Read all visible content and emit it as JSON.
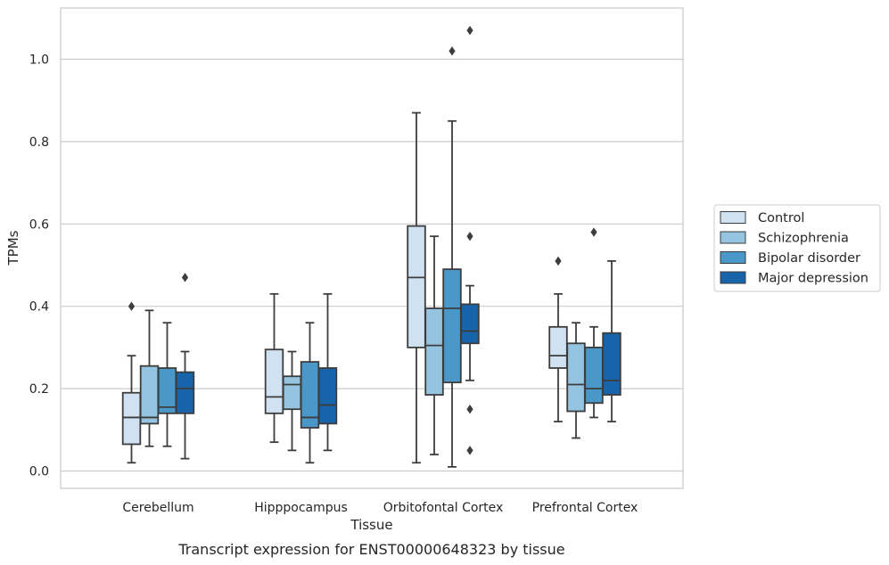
{
  "chart_data": {
    "type": "boxplot",
    "caption": "Transcript expression for ENST00000648323 by tissue",
    "xlabel": "Tissue",
    "ylabel": "TPMs",
    "ylim": [
      -0.04,
      1.13
    ],
    "yticks": [
      0.0,
      0.2,
      0.4,
      0.6,
      0.8,
      1.0
    ],
    "ytick_labels": [
      "0.0",
      "0.2",
      "0.4",
      "0.6",
      "0.8",
      "1.0"
    ],
    "grid": "horizontal",
    "legend_position": "right",
    "categories": [
      "Cerebellum",
      "Hipppocampus",
      "Orbitofontal Cortex",
      "Prefrontal Cortex"
    ],
    "series": [
      {
        "name": "Control",
        "color": "#d0e1f2",
        "boxes": [
          {
            "whislo": 0.02,
            "q1": 0.065,
            "med": 0.13,
            "q3": 0.19,
            "whishi": 0.28,
            "fliers": [
              0.4
            ]
          },
          {
            "whislo": 0.07,
            "q1": 0.14,
            "med": 0.18,
            "q3": 0.295,
            "whishi": 0.43,
            "fliers": []
          },
          {
            "whislo": 0.02,
            "q1": 0.3,
            "med": 0.47,
            "q3": 0.595,
            "whishi": 0.87,
            "fliers": []
          },
          {
            "whislo": 0.12,
            "q1": 0.25,
            "med": 0.28,
            "q3": 0.35,
            "whishi": 0.43,
            "fliers": [
              0.51
            ]
          }
        ]
      },
      {
        "name": "Schizophrenia",
        "color": "#94c4df",
        "boxes": [
          {
            "whislo": 0.06,
            "q1": 0.115,
            "med": 0.13,
            "q3": 0.255,
            "whishi": 0.39,
            "fliers": []
          },
          {
            "whislo": 0.05,
            "q1": 0.15,
            "med": 0.21,
            "q3": 0.23,
            "whishi": 0.29,
            "fliers": []
          },
          {
            "whislo": 0.04,
            "q1": 0.185,
            "med": 0.305,
            "q3": 0.395,
            "whishi": 0.57,
            "fliers": []
          },
          {
            "whislo": 0.08,
            "q1": 0.145,
            "med": 0.21,
            "q3": 0.31,
            "whishi": 0.36,
            "fliers": []
          }
        ]
      },
      {
        "name": "Bipolar disorder",
        "color": "#4a98c9",
        "boxes": [
          {
            "whislo": 0.06,
            "q1": 0.14,
            "med": 0.155,
            "q3": 0.25,
            "whishi": 0.36,
            "fliers": []
          },
          {
            "whislo": 0.02,
            "q1": 0.105,
            "med": 0.13,
            "q3": 0.265,
            "whishi": 0.36,
            "fliers": []
          },
          {
            "whislo": 0.01,
            "q1": 0.215,
            "med": 0.395,
            "q3": 0.49,
            "whishi": 0.85,
            "fliers": [
              1.02
            ]
          },
          {
            "whislo": 0.13,
            "q1": 0.165,
            "med": 0.2,
            "q3": 0.3,
            "whishi": 0.35,
            "fliers": [
              0.58
            ]
          }
        ]
      },
      {
        "name": "Major depression",
        "color": "#1764ab",
        "boxes": [
          {
            "whislo": 0.03,
            "q1": 0.14,
            "med": 0.2,
            "q3": 0.24,
            "whishi": 0.29,
            "fliers": [
              0.47
            ]
          },
          {
            "whislo": 0.05,
            "q1": 0.115,
            "med": 0.16,
            "q3": 0.25,
            "whishi": 0.43,
            "fliers": []
          },
          {
            "whislo": 0.22,
            "q1": 0.31,
            "med": 0.34,
            "q3": 0.405,
            "whishi": 0.45,
            "fliers": [
              1.07,
              0.57,
              0.15,
              0.05
            ]
          },
          {
            "whislo": 0.12,
            "q1": 0.185,
            "med": 0.22,
            "q3": 0.335,
            "whishi": 0.51,
            "fliers": []
          }
        ]
      }
    ]
  }
}
